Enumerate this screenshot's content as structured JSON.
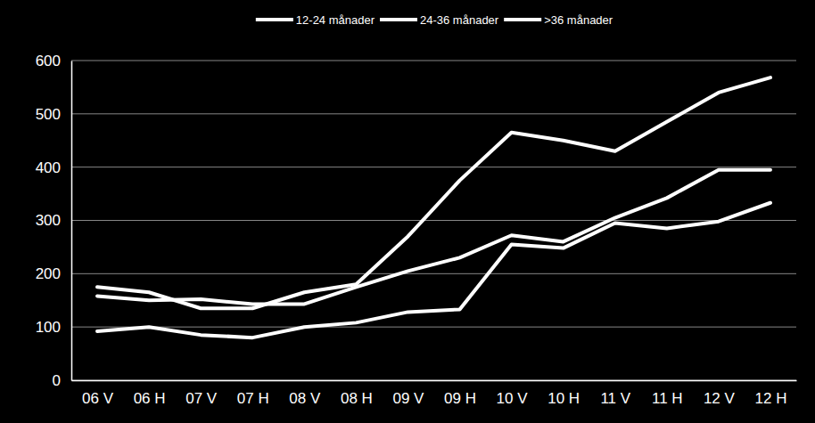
{
  "chart_data": {
    "type": "line",
    "categories": [
      "06 V",
      "06 H",
      "07 V",
      "07 H",
      "08 V",
      "08 H",
      "09 V",
      "09 H",
      "10 V",
      "10 H",
      "11 V",
      "11 H",
      "12 V",
      "12 H"
    ],
    "series": [
      {
        "name": "12-24 månader",
        "color": "#ffffff",
        "values": [
          175,
          165,
          135,
          135,
          165,
          180,
          270,
          375,
          465,
          450,
          430,
          485,
          540,
          568
        ]
      },
      {
        "name": "24-36 månader",
        "color": "#ffffff",
        "values": [
          158,
          150,
          152,
          143,
          143,
          175,
          205,
          230,
          272,
          260,
          305,
          342,
          395,
          395
        ]
      },
      {
        "name": ">36 månader",
        "color": "#ffffff",
        "values": [
          92,
          100,
          85,
          80,
          100,
          108,
          128,
          133,
          255,
          248,
          295,
          285,
          298,
          333
        ]
      }
    ],
    "ylim": [
      0,
      600
    ],
    "yticks": [
      0,
      100,
      200,
      300,
      400,
      500,
      600
    ],
    "grid": true,
    "legend": "top"
  }
}
